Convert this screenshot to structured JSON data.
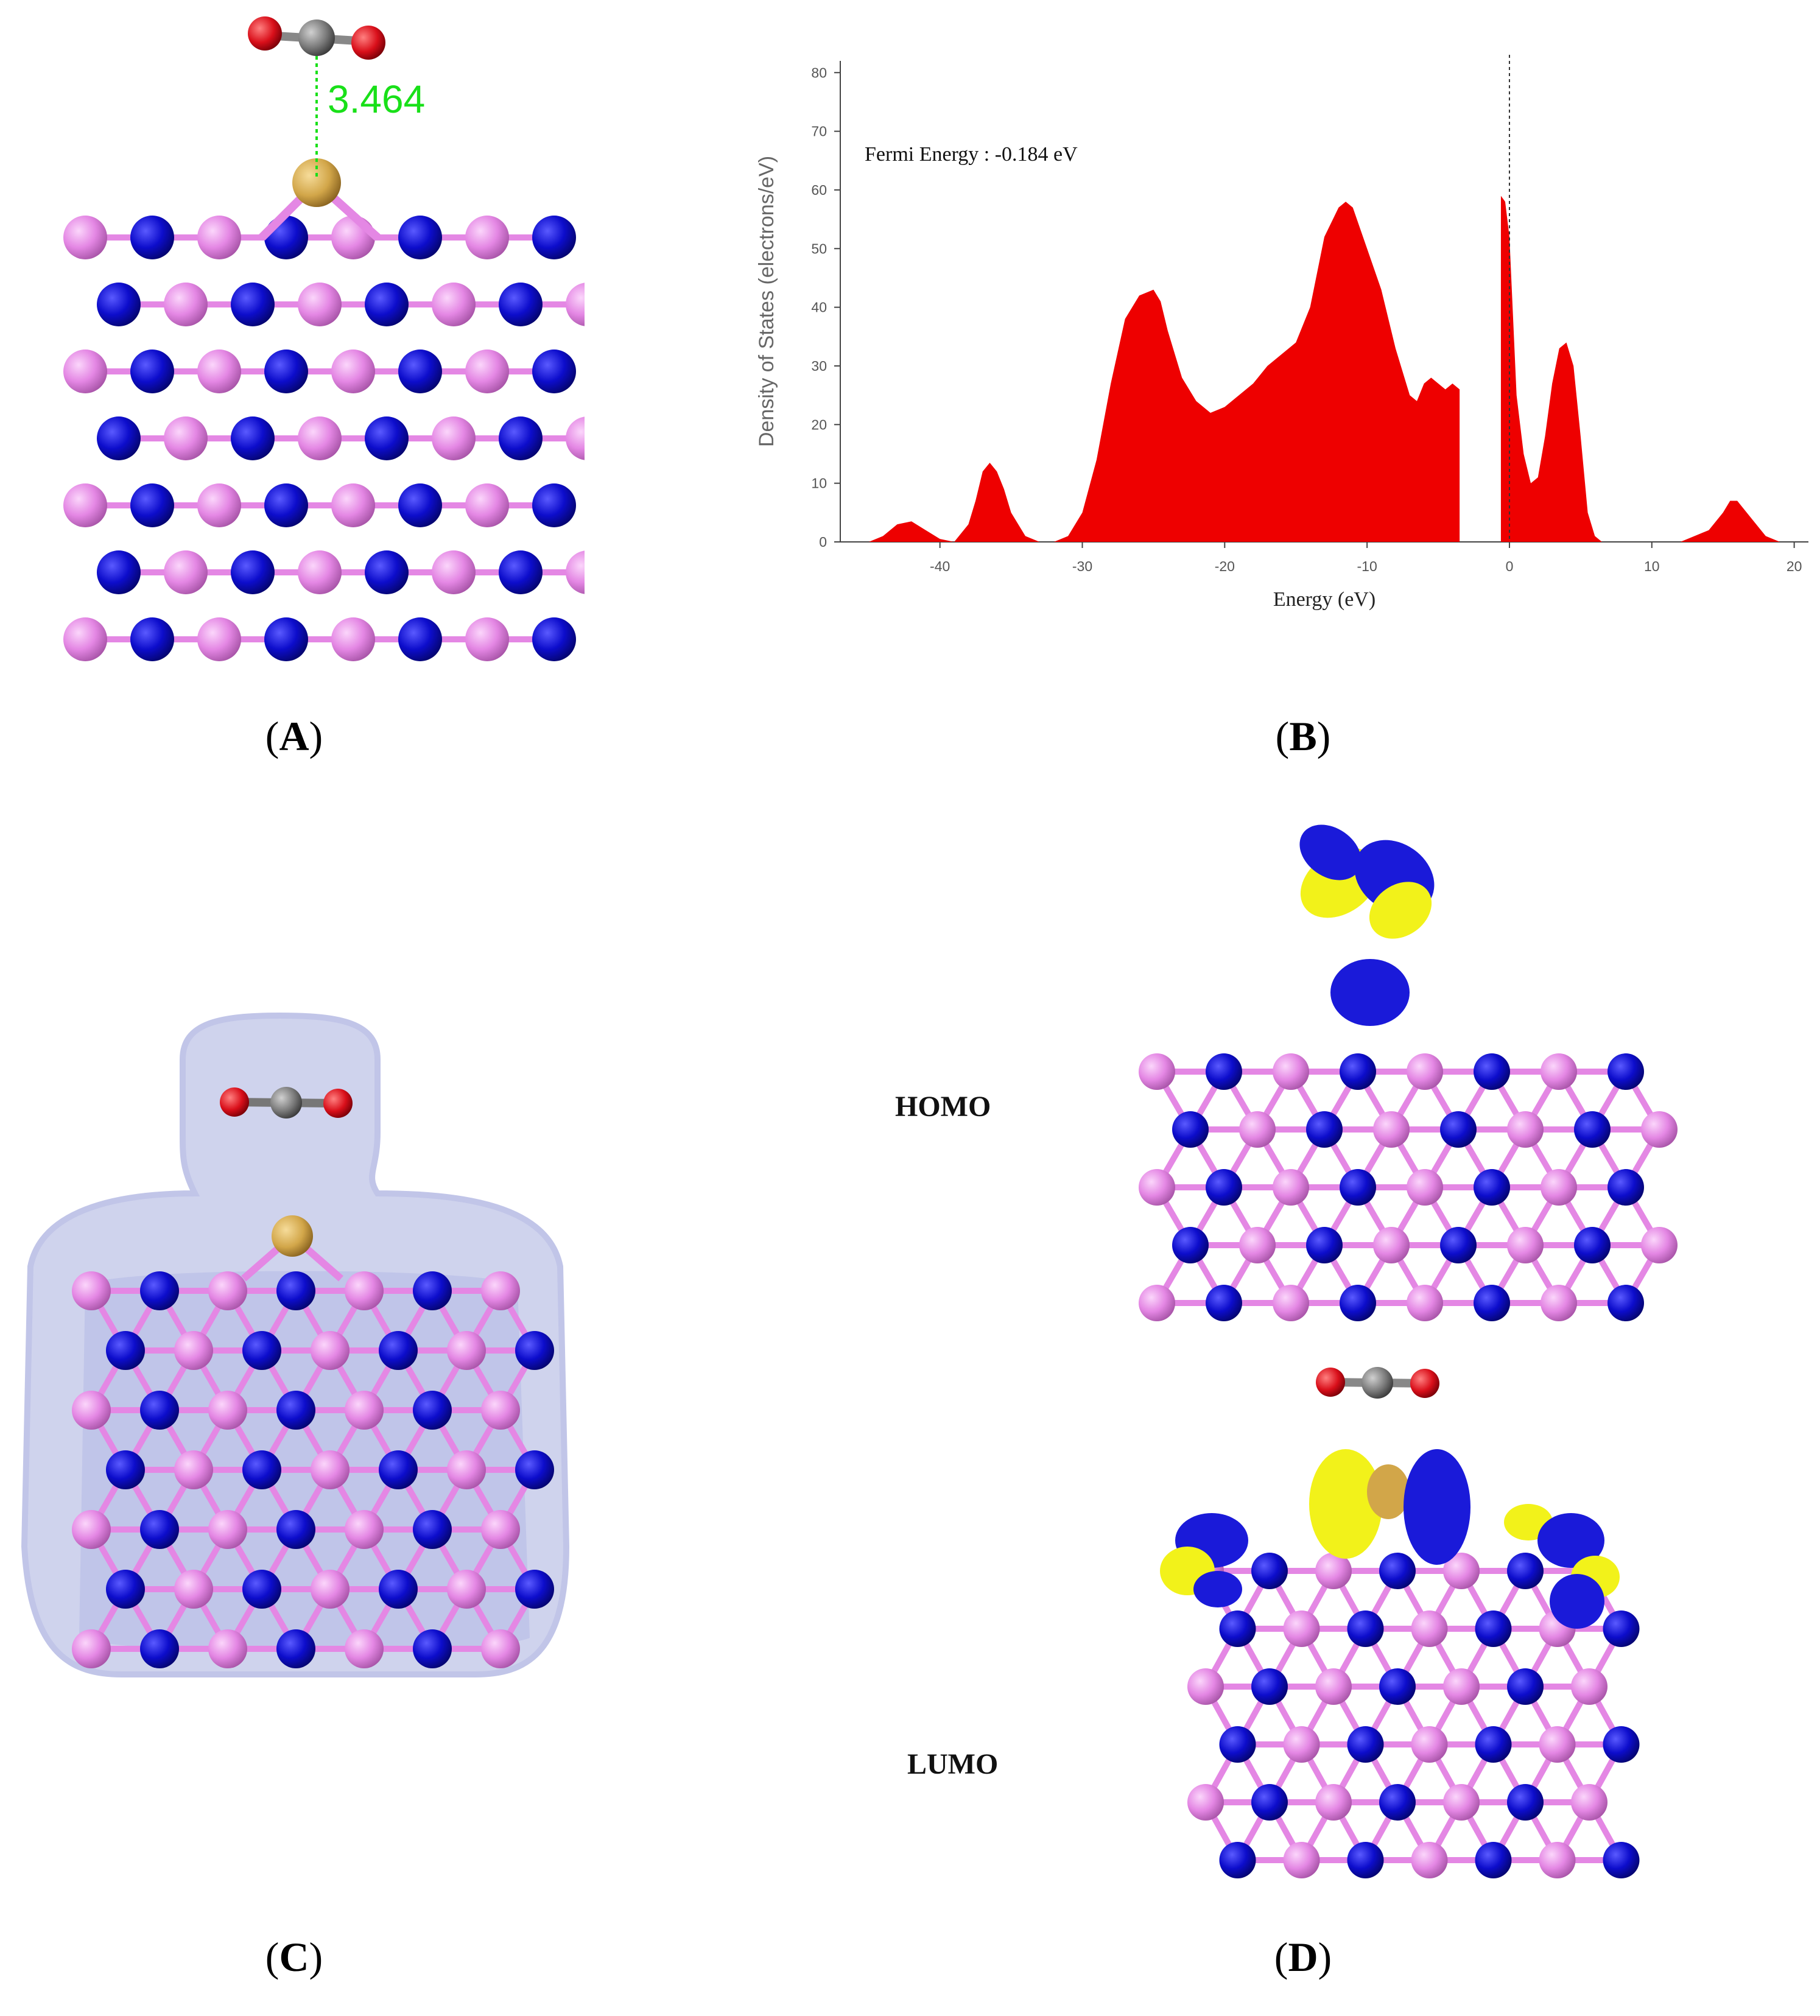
{
  "figure": {
    "panel_a": {
      "caption_letter": "A",
      "distance_label": "3.464"
    },
    "panel_b": {
      "caption_letter": "B",
      "fermi_annotation": "Fermi Energy : -0.184 eV"
    },
    "panel_c": {
      "caption_letter": "C"
    },
    "panel_d": {
      "caption_letter": "D",
      "homo_label": "HOMO",
      "lumo_label": "LUMO"
    }
  },
  "colors": {
    "boron": "#e487e4",
    "nitrogen": "#0d0dcc",
    "dopant": "#d2a649",
    "oxygen": "#d90f1a",
    "carbon": "#7a7a7a",
    "orbital_positive": "#1a1ad9",
    "orbital_negative": "#f2f21a",
    "dos_fill": "#ee0000",
    "distance_line": "#19e019",
    "isosurface": "#8f97d6"
  },
  "chart_data": {
    "type": "area",
    "title": "",
    "xlabel": "Energy (eV)",
    "ylabel": "Density of States (electrons/eV)",
    "xlim": [
      -47,
      21
    ],
    "ylim": [
      0,
      82
    ],
    "x_ticks": [
      -40,
      -30,
      -20,
      -10,
      0,
      10,
      20
    ],
    "y_ticks": [
      0,
      10,
      20,
      30,
      40,
      50,
      60,
      70,
      80
    ],
    "grid": false,
    "fermi_level_line": 0,
    "annotation": "Fermi Energy : -0.184 eV",
    "series": [
      {
        "x": [
          -47,
          -45,
          -44,
          -43,
          -42,
          -41,
          -40,
          -39,
          -38,
          -37.5,
          -37,
          -36.5,
          -36,
          -35.5,
          -35,
          -34,
          -33,
          -32,
          -31,
          -30,
          -29,
          -28,
          -27,
          -26,
          -25,
          -24.5,
          -24,
          -23,
          -22,
          -21,
          -20,
          -19,
          -18,
          -17,
          -16,
          -15,
          -14,
          -13,
          -12,
          -11.5,
          -11,
          -10,
          -9,
          -8,
          -7,
          -6.5,
          -6,
          -5.5,
          -5,
          -4.5,
          -4,
          -3.5,
          -3.5,
          -0.6,
          -0.6,
          -0.3,
          0,
          0.5,
          1,
          1.5,
          2,
          2.5,
          3,
          3.5,
          4,
          4.5,
          5,
          5.5,
          6,
          6.5,
          7,
          8,
          10,
          12,
          13,
          14,
          15,
          15.5,
          16,
          17,
          18,
          19,
          20,
          21
        ],
        "y": [
          0,
          0,
          1,
          3,
          3.5,
          2,
          0.5,
          0,
          3,
          7,
          12,
          13.5,
          12,
          9,
          5,
          1,
          0,
          0,
          1,
          5,
          14,
          27,
          38,
          42,
          43,
          41,
          36,
          28,
          24,
          22,
          23,
          25,
          27,
          30,
          32,
          34,
          40,
          52,
          57,
          58,
          57,
          50,
          43,
          33,
          25,
          24,
          27,
          28,
          27,
          26,
          27,
          26,
          0,
          0,
          59,
          58,
          52,
          25,
          15,
          10,
          11,
          18,
          27,
          33,
          34,
          30,
          18,
          5,
          1,
          0,
          0,
          0,
          0,
          0,
          1,
          2,
          5,
          7,
          7,
          4,
          1,
          0,
          0,
          0
        ]
      }
    ]
  }
}
